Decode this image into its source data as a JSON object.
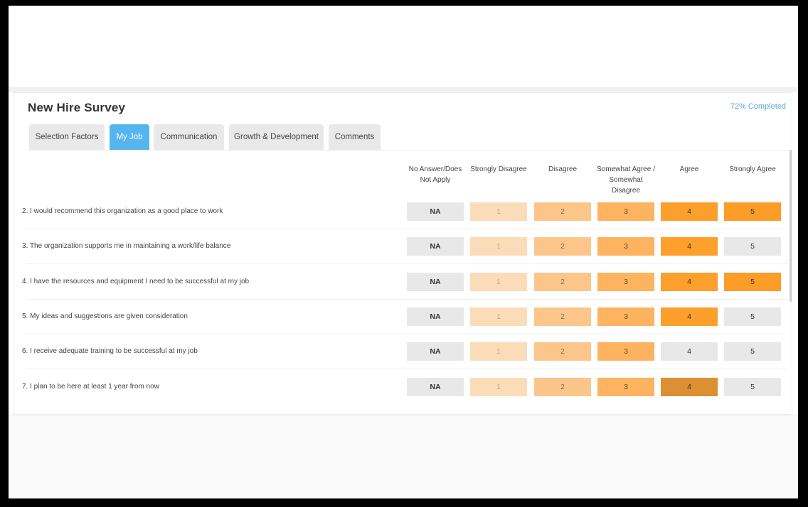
{
  "survey": {
    "title": "New Hire Survey",
    "completion": "72% Completed",
    "accent_color": "#55b6ef",
    "scale_colors": [
      "#fbdcb8",
      "#fcc68b",
      "#fdb35f",
      "#fca02b",
      "#fc9d28"
    ]
  },
  "tabs": [
    {
      "label": "Selection Factors",
      "active": false
    },
    {
      "label": "My Job",
      "active": true
    },
    {
      "label": "Communication",
      "active": false
    },
    {
      "label": "Growth & Development",
      "active": false
    },
    {
      "label": "Comments",
      "active": false
    }
  ],
  "columns": [
    "No Answer/Does Not Apply",
    "Strongly Disagree",
    "Disagree",
    "Somewhat Agree / Somewhat Disagree",
    "Agree",
    "Strongly Agree"
  ],
  "questions": [
    {
      "text": "2. I would recommend this organization as a good place to work",
      "options": [
        "NA",
        "1",
        "2",
        "3",
        "4",
        "5"
      ],
      "highlight_up_to": 5
    },
    {
      "text": "3. The organization supports me in maintaining a work/life balance",
      "options": [
        "NA",
        "1",
        "2",
        "3",
        "4",
        "5"
      ],
      "highlight_up_to": 4
    },
    {
      "text": "4. I have the resources and equipment I need to be successful at my job",
      "options": [
        "NA",
        "1",
        "2",
        "3",
        "4",
        "5"
      ],
      "highlight_up_to": 5
    },
    {
      "text": "5. My ideas and suggestions are given consideration",
      "options": [
        "NA",
        "1",
        "2",
        "3",
        "4",
        "5"
      ],
      "highlight_up_to": 4
    },
    {
      "text": "6. I receive adequate training to be successful at my job",
      "options": [
        "NA",
        "1",
        "2",
        "3",
        "4",
        "5"
      ],
      "highlight_up_to": 3
    },
    {
      "text": "7. I plan to be here at least 1 year from now",
      "options": [
        "NA",
        "1",
        "2",
        "3",
        "4",
        "5"
      ],
      "highlight_up_to": 4,
      "hovered": 4
    }
  ]
}
